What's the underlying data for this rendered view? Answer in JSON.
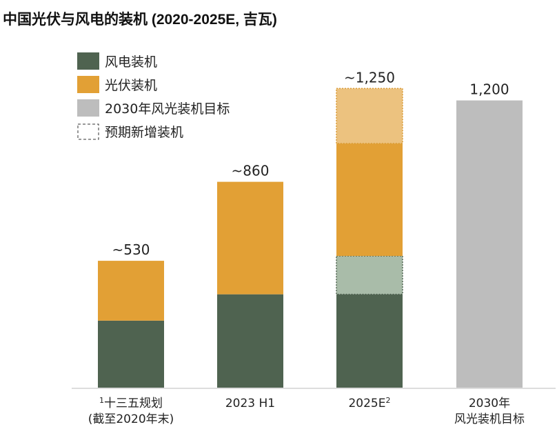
{
  "chart_data": {
    "type": "bar",
    "stacked": true,
    "title": "中国光伏与风电的装机 (2020-2025E, 吉瓦)",
    "xlabel": "",
    "ylabel": "",
    "ylim": [
      0,
      1300
    ],
    "categories": [
      {
        "line1": "十三五规划",
        "sup_pre": "1",
        "line2": "(截至2020年末)"
      },
      {
        "line1": "2023 H1",
        "line2": ""
      },
      {
        "line1": "2025E",
        "sup": "2",
        "line2": ""
      },
      {
        "line1": "2030年",
        "line2": "风光装机目标"
      }
    ],
    "series": [
      {
        "name": "风电装机",
        "key": "wind",
        "color": "#4f6350",
        "values": [
          280,
          390,
          390,
          0
        ]
      },
      {
        "name": "预期新增风电装机",
        "key": "wind_new",
        "color": "#a9bca9",
        "dashed": true,
        "values": [
          0,
          0,
          160,
          0
        ]
      },
      {
        "name": "光伏装机",
        "key": "solar",
        "color": "#e2a035",
        "values": [
          250,
          470,
          470,
          0
        ]
      },
      {
        "name": "预期新增光伏装机",
        "key": "solar_new",
        "color": "#ecc27f",
        "dashed": true,
        "values": [
          0,
          0,
          230,
          0
        ]
      },
      {
        "name": "2030年风光装机目标",
        "key": "target",
        "color": "#bdbdbd",
        "values": [
          0,
          0,
          0,
          1200
        ]
      }
    ],
    "totals_labels": [
      "~530",
      "~860",
      "~1,250",
      "1,200"
    ],
    "legend": [
      {
        "label": "风电装机",
        "color": "#4f6350"
      },
      {
        "label": "光伏装机",
        "color": "#e2a035"
      },
      {
        "label": "2030年风光装机目标",
        "color": "#bdbdbd"
      },
      {
        "label": "预期新增装机",
        "dashed": true
      }
    ],
    "legend_position": "top-left"
  }
}
